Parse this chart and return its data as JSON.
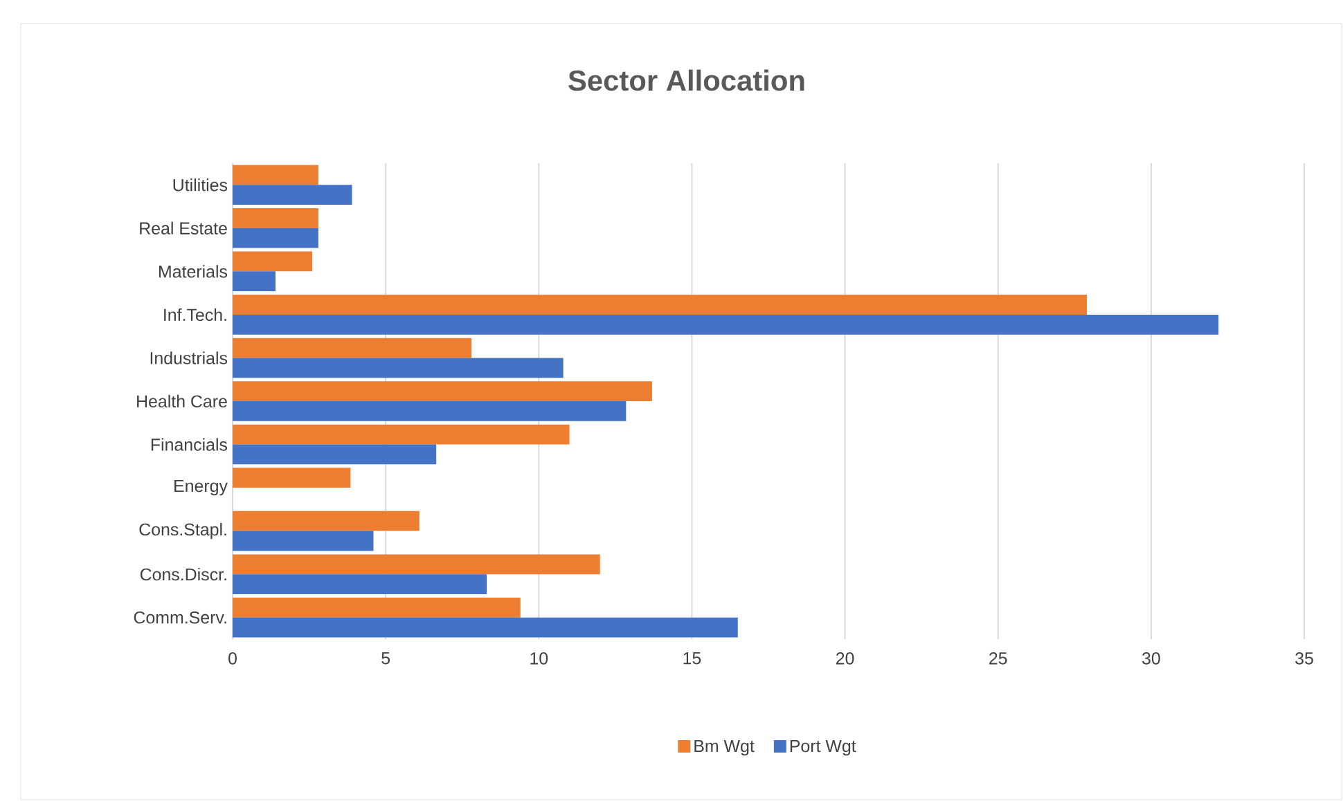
{
  "chart_data": {
    "type": "bar",
    "orientation": "horizontal",
    "title": "Sector Allocation",
    "categories": [
      "Utilities",
      "Real Estate",
      "Materials",
      "Inf.Tech.",
      "Industrials",
      "Health Care",
      "Financials",
      "Energy",
      "Cons.Stapl.",
      "Cons.Discr.",
      "Comm.Serv."
    ],
    "series": [
      {
        "name": "Bm Wgt",
        "color": "#ed7d31",
        "values": [
          2.8,
          2.8,
          2.6,
          27.9,
          7.8,
          13.7,
          11.0,
          3.85,
          6.1,
          12.0,
          9.4
        ]
      },
      {
        "name": "Port Wgt",
        "color": "#4472c4",
        "values": [
          3.9,
          2.8,
          1.4,
          32.2,
          10.8,
          12.85,
          6.65,
          0,
          4.6,
          8.3,
          16.5
        ]
      }
    ],
    "xlim": [
      0,
      35
    ],
    "xticks": [
      0,
      5,
      10,
      15,
      20,
      25,
      30,
      35
    ],
    "grid": "x",
    "legend": "bottom"
  }
}
